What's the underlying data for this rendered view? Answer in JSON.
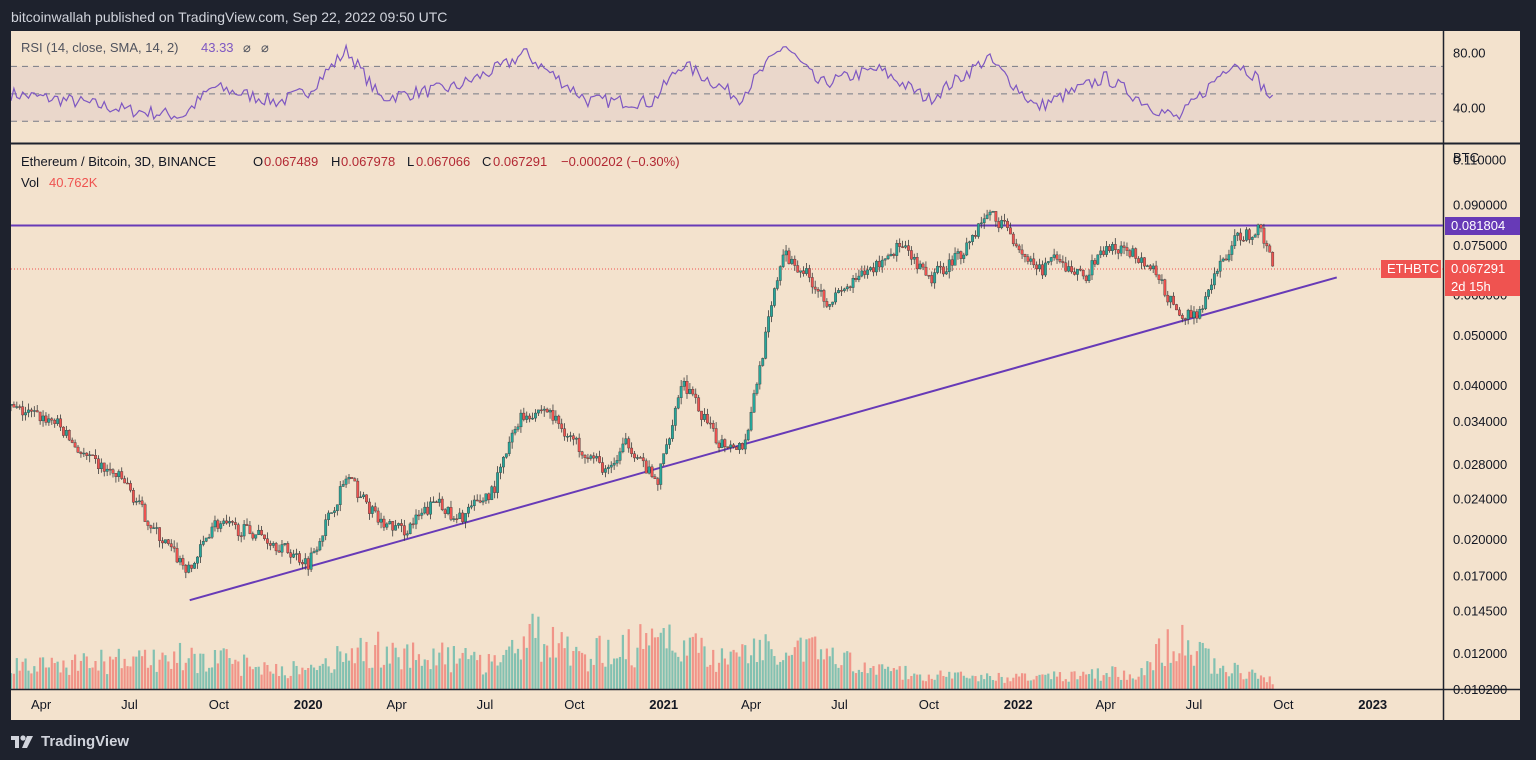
{
  "header": {
    "caption": "bitcoinwallah published on TradingView.com, Sep 22, 2022 09:50 UTC"
  },
  "rsi": {
    "title": "RSI (14, close, SMA, 14, 2)",
    "value": "43.33",
    "icons": [
      "⌀",
      "⌀"
    ],
    "scale_labels": [
      "80.00",
      "40.00"
    ],
    "upper_band": 70,
    "middle_band": 50,
    "lower_band": 30,
    "color": "#7e57c2"
  },
  "legend": {
    "symbol": "Ethereum / Bitcoin, 3D, BINANCE",
    "o_label": "O",
    "o_value": "0.067489",
    "h_label": "H",
    "h_value": "0.067978",
    "l_label": "L",
    "l_value": "0.067066",
    "c_label": "C",
    "c_value": "0.067291",
    "change": "−0.000202 (−0.30%)",
    "vol_label": "Vol",
    "vol_value": "40.762K"
  },
  "price_axis": {
    "unit": "BTC",
    "labels": [
      "0.110000",
      "0.090000",
      "0.075000",
      "0.060000",
      "0.050000",
      "0.040000",
      "0.034000",
      "0.028000",
      "0.024000",
      "0.020000",
      "0.017000",
      "0.014500",
      "0.012000",
      "0.010200"
    ]
  },
  "tags": {
    "resistance": "0.081804",
    "last_price": "0.067291",
    "symbol": "ETHBTC",
    "countdown": "2d 15h"
  },
  "time_axis": {
    "labels": [
      "Apr",
      "Jul",
      "Oct",
      "2020",
      "Apr",
      "Jul",
      "Oct",
      "2021",
      "Apr",
      "Jul",
      "Oct",
      "2022",
      "Apr",
      "Jul",
      "Oct",
      "2023"
    ]
  },
  "colors": {
    "up": "#26a69a",
    "down": "#ef5350",
    "line": "#673ab7",
    "price_line": "#ef5350",
    "background": "#f3e2cd",
    "frame": "#1e222d"
  },
  "branding": {
    "logo_text": "TradingView",
    "logo_icon": "tradingview-logo-icon"
  },
  "chart_data": {
    "type": "candlestick",
    "title": "Ethereum / Bitcoin, 3D, BINANCE",
    "ylabel": "BTC",
    "y_scale": "log",
    "ylim": [
      0.0102,
      0.118
    ],
    "xlim": [
      "2019-03-01",
      "2023-03-01"
    ],
    "price_key_points": [
      [
        "2019-03-01",
        0.036
      ],
      [
        "2019-04-15",
        0.034
      ],
      [
        "2019-05-15",
        0.029
      ],
      [
        "2019-06-25",
        0.026
      ],
      [
        "2019-07-25",
        0.021
      ],
      [
        "2019-09-01",
        0.0172
      ],
      [
        "2019-09-25",
        0.0215
      ],
      [
        "2019-11-10",
        0.0205
      ],
      [
        "2020-01-01",
        0.018
      ],
      [
        "2020-02-10",
        0.0265
      ],
      [
        "2020-03-15",
        0.0215
      ],
      [
        "2020-04-10",
        0.0208
      ],
      [
        "2020-05-15",
        0.024
      ],
      [
        "2020-05-30",
        0.0215
      ],
      [
        "2020-07-10",
        0.025
      ],
      [
        "2020-08-05",
        0.0345
      ],
      [
        "2020-09-01",
        0.036
      ],
      [
        "2020-10-01",
        0.031
      ],
      [
        "2020-11-05",
        0.027
      ],
      [
        "2020-11-25",
        0.031
      ],
      [
        "2020-12-25",
        0.0255
      ],
      [
        "2021-01-20",
        0.041
      ],
      [
        "2021-02-25",
        0.031
      ],
      [
        "2021-03-25",
        0.0305
      ],
      [
        "2021-05-03",
        0.072
      ],
      [
        "2021-05-25",
        0.067
      ],
      [
        "2021-06-20",
        0.058
      ],
      [
        "2021-07-10",
        0.062
      ],
      [
        "2021-08-10",
        0.069
      ],
      [
        "2021-09-01",
        0.075
      ],
      [
        "2021-10-01",
        0.064
      ],
      [
        "2021-11-05",
        0.073
      ],
      [
        "2021-12-01",
        0.087
      ],
      [
        "2021-12-20",
        0.081
      ],
      [
        "2022-01-20",
        0.066
      ],
      [
        "2022-02-05",
        0.07
      ],
      [
        "2022-03-10",
        0.065
      ],
      [
        "2022-04-01",
        0.074
      ],
      [
        "2022-05-03",
        0.072
      ],
      [
        "2022-05-25",
        0.065
      ],
      [
        "2022-06-15",
        0.054
      ],
      [
        "2022-07-10",
        0.056
      ],
      [
        "2022-07-25",
        0.067
      ],
      [
        "2022-08-15",
        0.078
      ],
      [
        "2022-09-08",
        0.08
      ],
      [
        "2022-09-22",
        0.0673
      ]
    ],
    "volume_profile": [
      [
        "2019-03-01",
        0.25
      ],
      [
        "2019-06-01",
        0.3
      ],
      [
        "2019-09-01",
        0.35
      ],
      [
        "2020-01-01",
        0.2
      ],
      [
        "2020-03-01",
        0.45
      ],
      [
        "2020-07-01",
        0.3
      ],
      [
        "2020-08-20",
        0.6
      ],
      [
        "2020-10-01",
        0.35
      ],
      [
        "2021-01-05",
        0.55
      ],
      [
        "2021-03-01",
        0.35
      ],
      [
        "2021-05-15",
        0.5
      ],
      [
        "2021-08-01",
        0.2
      ],
      [
        "2021-12-01",
        0.12
      ],
      [
        "2022-05-01",
        0.18
      ],
      [
        "2022-06-15",
        0.55
      ],
      [
        "2022-08-01",
        0.22
      ],
      [
        "2022-09-22",
        0.1
      ]
    ],
    "resistance_level": 0.081804,
    "last_price": 0.067291,
    "trendline": [
      [
        "2019-09-01",
        0.0152
      ],
      [
        "2022-11-25",
        0.0648
      ]
    ],
    "rsi_series": [
      [
        "2019-03-01",
        50
      ],
      [
        "2019-05-01",
        45
      ],
      [
        "2019-07-01",
        38
      ],
      [
        "2019-08-25",
        34
      ],
      [
        "2019-09-25",
        55
      ],
      [
        "2019-12-01",
        44
      ],
      [
        "2020-01-01",
        52
      ],
      [
        "2020-02-10",
        82
      ],
      [
        "2020-03-15",
        47
      ],
      [
        "2020-06-01",
        55
      ],
      [
        "2020-07-25",
        72
      ],
      [
        "2020-08-10",
        80
      ],
      [
        "2020-09-01",
        68
      ],
      [
        "2020-10-15",
        45
      ],
      [
        "2020-12-20",
        44
      ],
      [
        "2021-01-20",
        72
      ],
      [
        "2021-03-20",
        47
      ],
      [
        "2021-05-05",
        86
      ],
      [
        "2021-06-10",
        57
      ],
      [
        "2021-08-10",
        68
      ],
      [
        "2021-10-01",
        46
      ],
      [
        "2021-12-01",
        76
      ],
      [
        "2022-01-20",
        40
      ],
      [
        "2022-04-01",
        62
      ],
      [
        "2022-05-20",
        40
      ],
      [
        "2022-06-15",
        32
      ],
      [
        "2022-07-20",
        58
      ],
      [
        "2022-08-10",
        74
      ],
      [
        "2022-09-01",
        64
      ],
      [
        "2022-09-22",
        43
      ]
    ]
  }
}
